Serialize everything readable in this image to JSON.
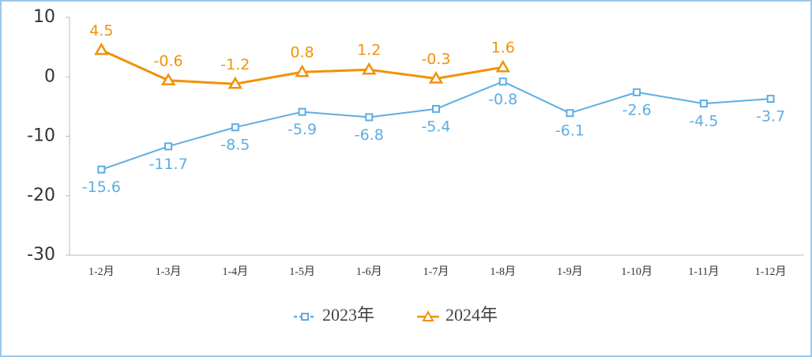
{
  "chart_data": {
    "type": "line",
    "categories": [
      "1-2月",
      "1-3月",
      "1-4月",
      "1-5月",
      "1-6月",
      "1-7月",
      "1-8月",
      "1-9月",
      "1-10月",
      "1-11月",
      "1-12月"
    ],
    "series": [
      {
        "name": "2023年",
        "color": "#5dade2",
        "marker": "square",
        "values": [
          -15.6,
          -11.7,
          -8.5,
          -5.9,
          -6.8,
          -5.4,
          -0.8,
          -6.1,
          -2.6,
          -4.5,
          -3.7
        ]
      },
      {
        "name": "2024年",
        "color": "#f0920a",
        "marker": "triangle",
        "values": [
          4.5,
          -0.6,
          -1.2,
          0.8,
          1.2,
          -0.3,
          1.6,
          null,
          null,
          null,
          null
        ]
      }
    ],
    "ylim": [
      -30,
      10
    ],
    "yticks": [
      10,
      0,
      -10,
      -20,
      -30
    ],
    "grid": false,
    "legend": "bottom"
  }
}
